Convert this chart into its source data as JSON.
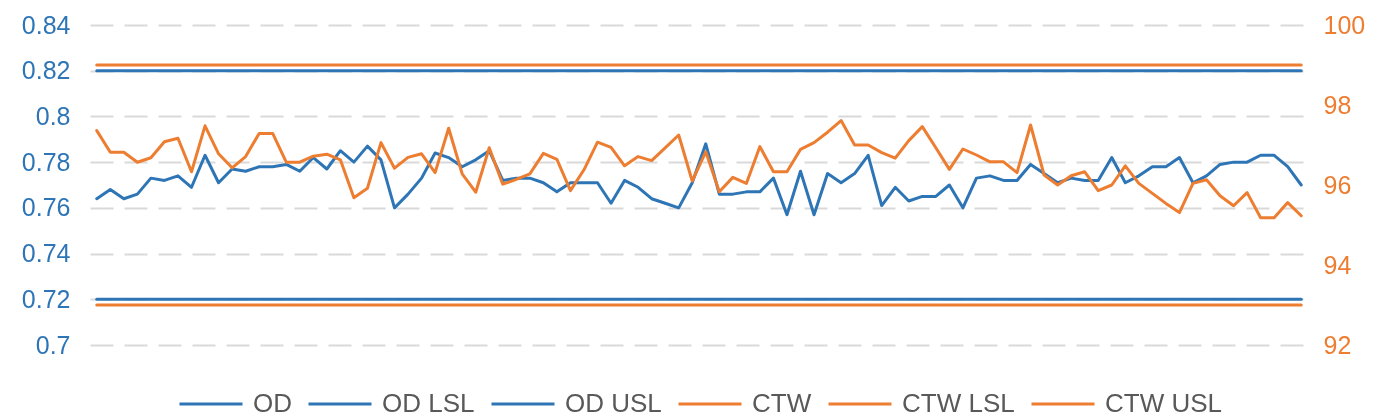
{
  "chart_data": {
    "type": "line",
    "categories": [
      null,
      null,
      null,
      null,
      null,
      null,
      null,
      null,
      null,
      null,
      null,
      null,
      null,
      null,
      null,
      null,
      null,
      null,
      null,
      null,
      null,
      null,
      null,
      null,
      null,
      null,
      null,
      null,
      null,
      null,
      null,
      null,
      null,
      null,
      null,
      null,
      null,
      null,
      null,
      null,
      null,
      null,
      null,
      null,
      null,
      null,
      null,
      null,
      null,
      null,
      null,
      null,
      null,
      null,
      null,
      null,
      null,
      null,
      null,
      null,
      null,
      null,
      null,
      null,
      null,
      null,
      null,
      null,
      null,
      null,
      null,
      null,
      null,
      null,
      null,
      null,
      null,
      null,
      null,
      null,
      null,
      null,
      null,
      null,
      null,
      null,
      null,
      null,
      null,
      null
    ],
    "ylim": [
      0.7,
      0.84
    ],
    "yticks": [
      0.7,
      0.72,
      0.74,
      0.76,
      0.78,
      0.8,
      0.82,
      0.84
    ],
    "y2lim": [
      92,
      100
    ],
    "y2ticks": [
      92,
      94,
      96,
      98,
      100
    ],
    "grid": "y",
    "legend": "bottom",
    "series": [
      {
        "name": "OD",
        "color": "#2e75b6",
        "axis": "y",
        "values": [
          0.764,
          0.768,
          0.764,
          0.766,
          0.773,
          0.772,
          0.774,
          0.769,
          0.783,
          0.771,
          0.777,
          0.776,
          0.778,
          0.778,
          0.779,
          0.776,
          0.782,
          0.777,
          0.785,
          0.78,
          0.787,
          0.781,
          0.76,
          0.766,
          0.773,
          0.784,
          0.782,
          0.778,
          0.781,
          0.785,
          0.772,
          0.773,
          0.773,
          0.771,
          0.767,
          0.771,
          0.771,
          0.771,
          0.762,
          0.772,
          0.769,
          0.764,
          0.762,
          0.76,
          0.771,
          0.788,
          0.766,
          0.766,
          0.767,
          0.767,
          0.773,
          0.757,
          0.776,
          0.757,
          0.775,
          0.771,
          0.775,
          0.783,
          0.761,
          0.769,
          0.763,
          0.765,
          0.765,
          0.77,
          0.76,
          0.773,
          0.774,
          0.772,
          0.772,
          0.779,
          0.775,
          0.771,
          0.773,
          0.772,
          0.772,
          0.782,
          0.771,
          0.774,
          0.778,
          0.778,
          0.782,
          0.771,
          0.774,
          0.779,
          0.78,
          0.78,
          0.783,
          0.783,
          0.778,
          0.77
        ]
      },
      {
        "name": "OD LSL",
        "color": "#2e75b6",
        "axis": "y",
        "values": [
          0.72,
          0.72,
          0.72,
          0.72,
          0.72,
          0.72,
          0.72,
          0.72,
          0.72,
          0.72,
          0.72,
          0.72,
          0.72,
          0.72,
          0.72,
          0.72,
          0.72,
          0.72,
          0.72,
          0.72,
          0.72,
          0.72,
          0.72,
          0.72,
          0.72,
          0.72,
          0.72,
          0.72,
          0.72,
          0.72,
          0.72,
          0.72,
          0.72,
          0.72,
          0.72,
          0.72,
          0.72,
          0.72,
          0.72,
          0.72,
          0.72,
          0.72,
          0.72,
          0.72,
          0.72,
          0.72,
          0.72,
          0.72,
          0.72,
          0.72,
          0.72,
          0.72,
          0.72,
          0.72,
          0.72,
          0.72,
          0.72,
          0.72,
          0.72,
          0.72,
          0.72,
          0.72,
          0.72,
          0.72,
          0.72,
          0.72,
          0.72,
          0.72,
          0.72,
          0.72,
          0.72,
          0.72,
          0.72,
          0.72,
          0.72,
          0.72,
          0.72,
          0.72,
          0.72,
          0.72,
          0.72,
          0.72,
          0.72,
          0.72,
          0.72,
          0.72,
          0.72,
          0.72,
          0.72,
          0.72
        ]
      },
      {
        "name": "OD USL",
        "color": "#2e75b6",
        "axis": "y",
        "values": [
          0.82,
          0.82,
          0.82,
          0.82,
          0.82,
          0.82,
          0.82,
          0.82,
          0.82,
          0.82,
          0.82,
          0.82,
          0.82,
          0.82,
          0.82,
          0.82,
          0.82,
          0.82,
          0.82,
          0.82,
          0.82,
          0.82,
          0.82,
          0.82,
          0.82,
          0.82,
          0.82,
          0.82,
          0.82,
          0.82,
          0.82,
          0.82,
          0.82,
          0.82,
          0.82,
          0.82,
          0.82,
          0.82,
          0.82,
          0.82,
          0.82,
          0.82,
          0.82,
          0.82,
          0.82,
          0.82,
          0.82,
          0.82,
          0.82,
          0.82,
          0.82,
          0.82,
          0.82,
          0.82,
          0.82,
          0.82,
          0.82,
          0.82,
          0.82,
          0.82,
          0.82,
          0.82,
          0.82,
          0.82,
          0.82,
          0.82,
          0.82,
          0.82,
          0.82,
          0.82,
          0.82,
          0.82,
          0.82,
          0.82,
          0.82,
          0.82,
          0.82,
          0.82,
          0.82,
          0.82,
          0.82,
          0.82,
          0.82,
          0.82,
          0.82,
          0.82,
          0.82,
          0.82,
          0.82,
          0.82
        ]
      },
      {
        "name": "CTW",
        "color": "#ed7d31",
        "axis": "y2",
        "values": [
          97.36,
          96.82,
          96.82,
          96.57,
          96.68,
          97.08,
          97.17,
          96.33,
          97.48,
          96.78,
          96.43,
          96.71,
          97.29,
          97.29,
          96.57,
          96.57,
          96.72,
          96.77,
          96.63,
          95.68,
          95.92,
          97.06,
          96.42,
          96.69,
          96.78,
          96.31,
          97.42,
          96.28,
          95.82,
          96.93,
          96.02,
          96.14,
          96.28,
          96.79,
          96.64,
          95.86,
          96.38,
          97.07,
          96.94,
          96.48,
          96.71,
          96.61,
          96.93,
          97.25,
          96.1,
          96.83,
          95.83,
          96.19,
          96.04,
          96.96,
          96.33,
          96.33,
          96.89,
          97.06,
          97.32,
          97.61,
          97.0,
          97.0,
          96.81,
          96.67,
          97.11,
          97.46,
          96.93,
          96.39,
          96.9,
          96.75,
          96.58,
          96.58,
          96.31,
          97.5,
          96.25,
          96.0,
          96.23,
          96.33,
          95.86,
          96.0,
          96.48,
          96.04,
          95.79,
          95.54,
          95.31,
          96.04,
          96.13,
          95.73,
          95.48,
          95.81,
          95.18,
          95.18,
          95.56,
          95.23
        ]
      },
      {
        "name": "CTW LSL",
        "color": "#ed7d31",
        "axis": "y2",
        "values": [
          93,
          93,
          93,
          93,
          93,
          93,
          93,
          93,
          93,
          93,
          93,
          93,
          93,
          93,
          93,
          93,
          93,
          93,
          93,
          93,
          93,
          93,
          93,
          93,
          93,
          93,
          93,
          93,
          93,
          93,
          93,
          93,
          93,
          93,
          93,
          93,
          93,
          93,
          93,
          93,
          93,
          93,
          93,
          93,
          93,
          93,
          93,
          93,
          93,
          93,
          93,
          93,
          93,
          93,
          93,
          93,
          93,
          93,
          93,
          93,
          93,
          93,
          93,
          93,
          93,
          93,
          93,
          93,
          93,
          93,
          93,
          93,
          93,
          93,
          93,
          93,
          93,
          93,
          93,
          93,
          93,
          93,
          93,
          93,
          93,
          93,
          93,
          93,
          93,
          93
        ]
      },
      {
        "name": "CTW USL",
        "color": "#ed7d31",
        "axis": "y2",
        "values": [
          99,
          99,
          99,
          99,
          99,
          99,
          99,
          99,
          99,
          99,
          99,
          99,
          99,
          99,
          99,
          99,
          99,
          99,
          99,
          99,
          99,
          99,
          99,
          99,
          99,
          99,
          99,
          99,
          99,
          99,
          99,
          99,
          99,
          99,
          99,
          99,
          99,
          99,
          99,
          99,
          99,
          99,
          99,
          99,
          99,
          99,
          99,
          99,
          99,
          99,
          99,
          99,
          99,
          99,
          99,
          99,
          99,
          99,
          99,
          99,
          99,
          99,
          99,
          99,
          99,
          99,
          99,
          99,
          99,
          99,
          99,
          99,
          99,
          99,
          99,
          99,
          99,
          99,
          99,
          99,
          99,
          99,
          99,
          99,
          99,
          99,
          99,
          99,
          99,
          99
        ]
      }
    ]
  }
}
